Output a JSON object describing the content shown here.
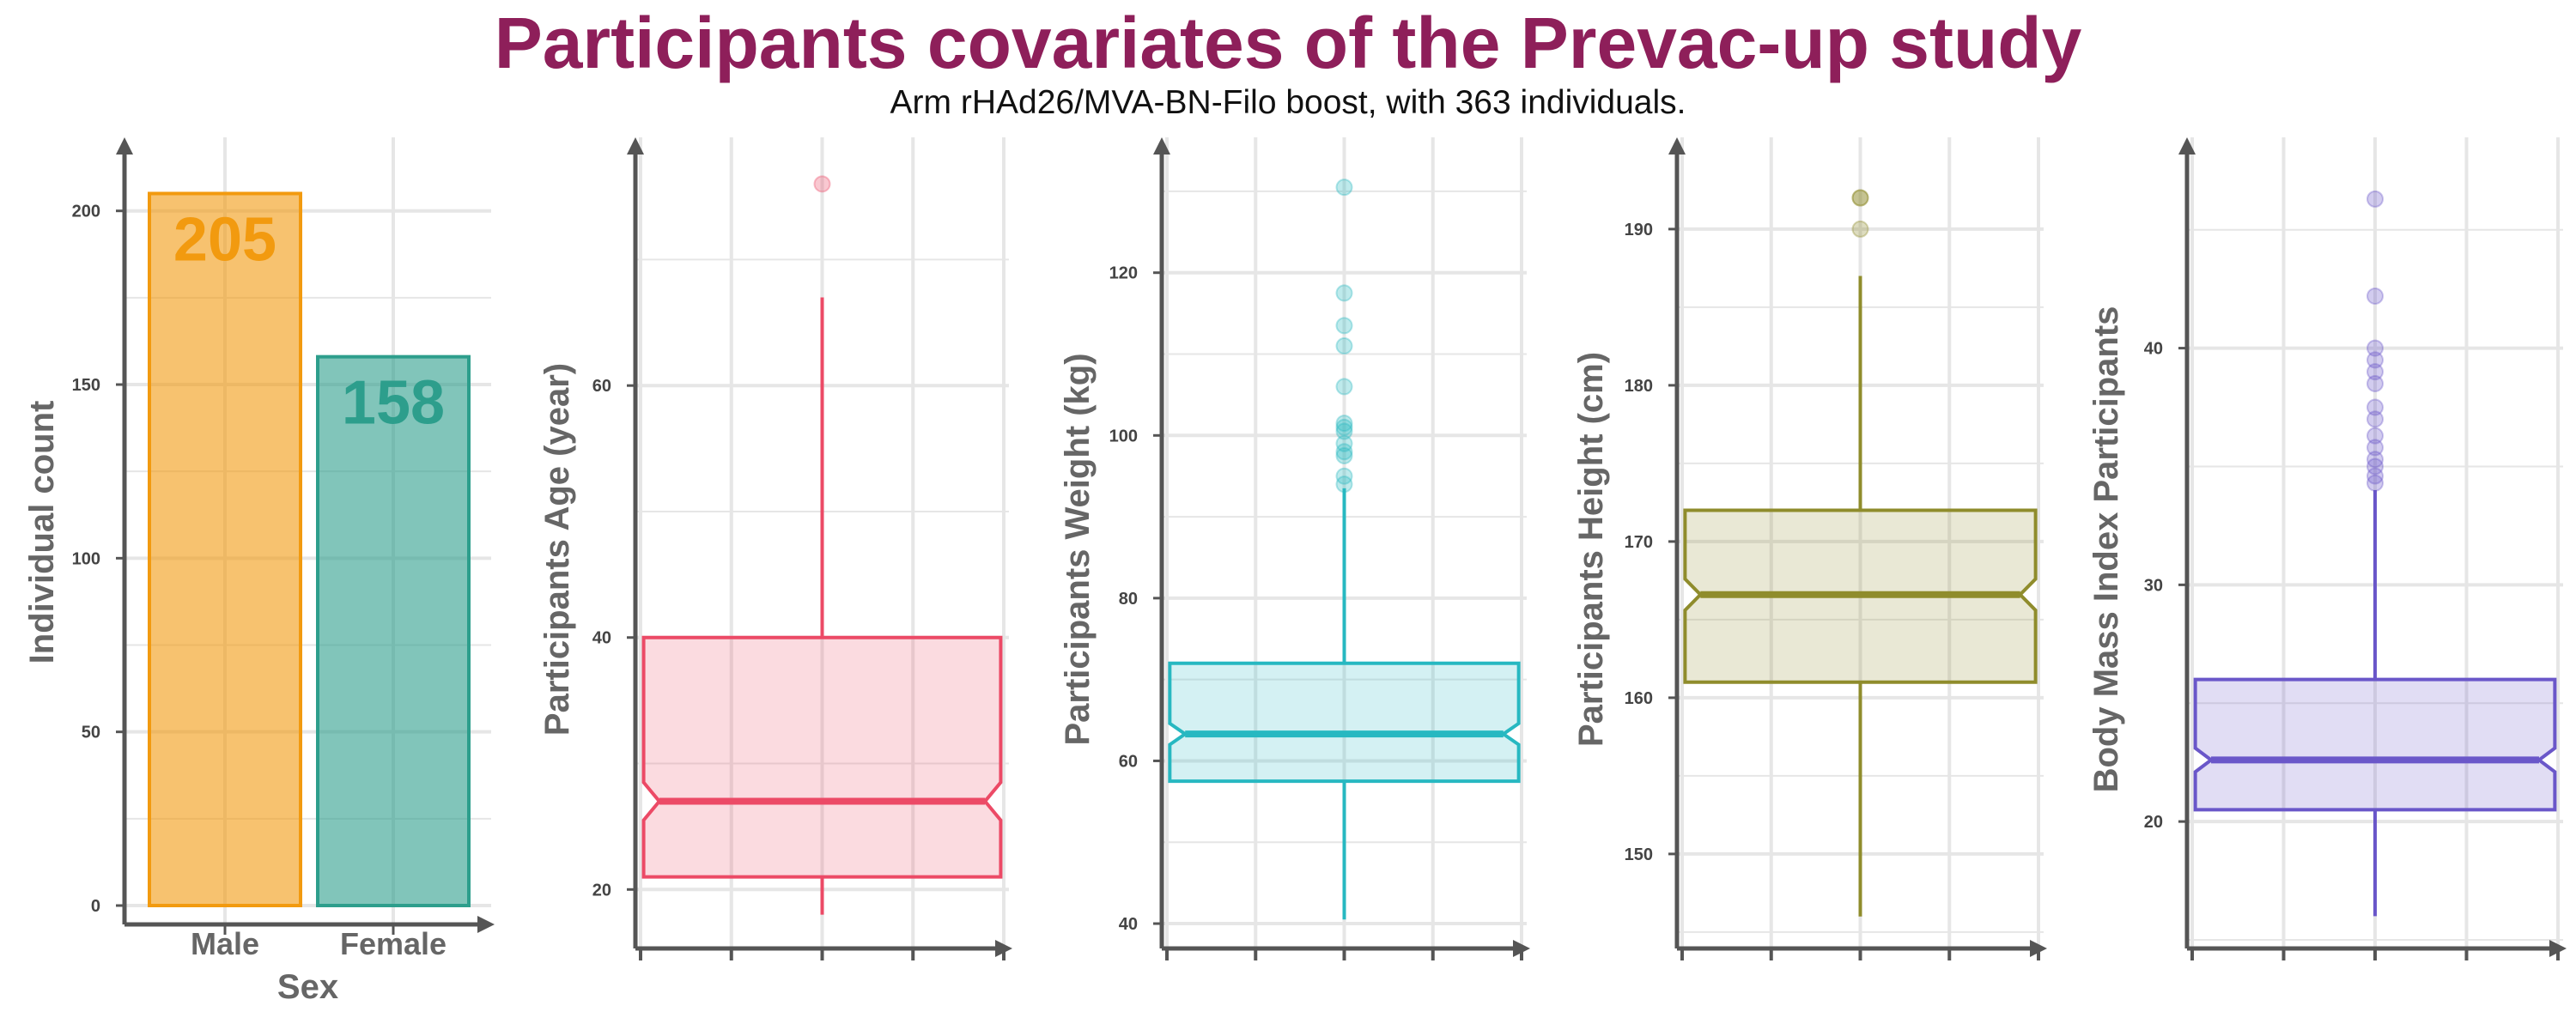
{
  "title": "Participants covariates of the Prevac-up study",
  "subtitle": "Arm rHAd26/MVA-BN-Filo boost, with 363 individuals.",
  "colors": {
    "title": "#8e1f5a",
    "male": "#f29a0f",
    "female": "#2d9e8c",
    "age": "#ec4a66",
    "weight": "#27b8c1",
    "height": "#8f8c2c",
    "bmi": "#6a57c9",
    "grid": "#e6e6e6",
    "axis": "#555555"
  },
  "chart_data": [
    {
      "type": "bar",
      "xlabel": "Sex",
      "ylabel": "Individual count",
      "categories": [
        "Male",
        "Female"
      ],
      "values": [
        205,
        158
      ],
      "data_labels": [
        "205",
        "158"
      ],
      "ylim": [
        0,
        215
      ],
      "yticks": [
        0,
        50,
        100,
        150,
        200
      ],
      "grid": true
    },
    {
      "type": "box",
      "ylabel": "Participants Age (year)",
      "notched": true,
      "min": 18,
      "q1": 21,
      "median": 27,
      "q3": 40,
      "max": 67,
      "notch_low": 25.5,
      "notch_high": 28.5,
      "outliers": [
        76
      ],
      "ylim": [
        16,
        78
      ],
      "yticks": [
        20,
        40,
        60
      ],
      "grid": true
    },
    {
      "type": "box",
      "ylabel": "Participants Weight (kg)",
      "notched": true,
      "min": 40.5,
      "q1": 57.5,
      "median": 63.3,
      "q3": 72,
      "max": 93.5,
      "notch_low": 62,
      "notch_high": 64.6,
      "outliers": [
        94,
        95,
        97.5,
        98,
        99,
        100.5,
        101,
        101.5,
        106,
        111,
        113.5,
        117.5,
        130.5
      ],
      "ylim": [
        38,
        134
      ],
      "yticks": [
        40,
        60,
        80,
        100,
        120
      ],
      "grid": true
    },
    {
      "type": "box",
      "ylabel": "Participants Height (cm)",
      "notched": true,
      "min": 146,
      "q1": 161,
      "median": 166.6,
      "q3": 172,
      "max": 187,
      "notch_low": 165.6,
      "notch_high": 167.6,
      "outliers": [
        190,
        192,
        192
      ],
      "ylim": [
        144.5,
        194.5
      ],
      "yticks": [
        150,
        160,
        170,
        180,
        190
      ],
      "grid": true
    },
    {
      "type": "box",
      "ylabel": "Body Mass Index Participants",
      "notched": true,
      "min": 16,
      "q1": 20.5,
      "median": 22.6,
      "q3": 26,
      "max": 34,
      "notch_low": 22.1,
      "notch_high": 23.1,
      "outliers": [
        34.3,
        34.6,
        35,
        35.3,
        35.8,
        36.3,
        37,
        37.5,
        38.5,
        39,
        39.5,
        40,
        42.2,
        46.3
      ],
      "ylim": [
        15,
        48
      ],
      "yticks": [
        20,
        30,
        40
      ],
      "grid": true
    }
  ]
}
